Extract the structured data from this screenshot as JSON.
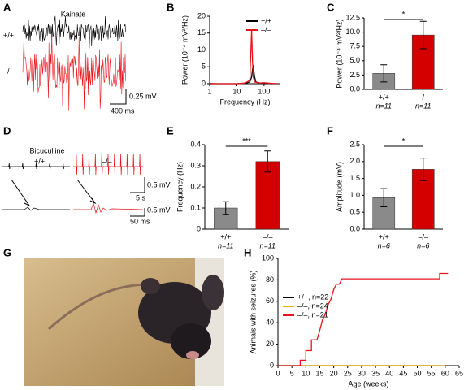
{
  "panel_labels": [
    "A",
    "B",
    "C",
    "D",
    "E",
    "F",
    "G",
    "H"
  ],
  "trace_panels": {
    "A": {
      "title": "Kainate",
      "genotypes": [
        "+/+",
        "–/–"
      ],
      "scale": [
        "0.25 mV",
        "400 ms"
      ]
    },
    "D": {
      "title": "Bicuculline",
      "genotypes": [
        "+/+",
        "–/–"
      ],
      "scale": [
        "0.5 mV",
        "5 s",
        "0.5 mV",
        "50 ms"
      ]
    }
  },
  "chart_data": [
    {
      "type": "line",
      "xlabel": "Frequency (Hz)",
      "ylabel": "Power (10⁻⁴ mV²/Hz)",
      "xscale": "log",
      "x": [
        1,
        2,
        5,
        10,
        20,
        30,
        35,
        38,
        40,
        45,
        50,
        70,
        100,
        200,
        300
      ],
      "xlim": [
        1,
        400
      ],
      "xticks": [
        1,
        10,
        100
      ],
      "ylim": [
        0,
        20
      ],
      "yticks": [
        0,
        5,
        10,
        15,
        20
      ],
      "legend": "upper right",
      "series": [
        {
          "name": "+/+",
          "color": "#000000",
          "values": [
            0,
            0,
            0,
            0,
            0.1,
            0.5,
            2,
            4.5,
            5,
            2,
            0.5,
            0.2,
            0.1,
            0,
            0
          ]
        },
        {
          "name": "–/–",
          "color": "#e8141c",
          "values": [
            0.1,
            0,
            0,
            0,
            0.2,
            1,
            16,
            6,
            2,
            0.5,
            0.4,
            0.2,
            0.3,
            0.1,
            0
          ]
        }
      ]
    },
    {
      "type": "bar",
      "ylabel": "Power (10⁻⁴ mV²/Hz)",
      "categories": [
        "+/+",
        "–/–"
      ],
      "n_labels": [
        "n=11",
        "n=11"
      ],
      "values": [
        2.8,
        9.5
      ],
      "errors": [
        1.5,
        2.4
      ],
      "colors": [
        "#8a8a8a",
        "#d40000"
      ],
      "significance": "*",
      "ylim": [
        0,
        12.5
      ],
      "yticks": [
        {
          "value": 0,
          "label": "0.0"
        },
        2.5,
        {
          "value": 5,
          "label": "5.0"
        },
        7.5,
        {
          "value": 10,
          "label": "10.0"
        },
        12.5
      ]
    },
    {
      "type": "bar",
      "ylabel": "Frequency (Hz)",
      "categories": [
        "+/+",
        "–/–"
      ],
      "n_labels": [
        "n=11",
        "n=11"
      ],
      "values": [
        0.1,
        0.32
      ],
      "errors": [
        0.03,
        0.05
      ],
      "colors": [
        "#8a8a8a",
        "#d40000"
      ],
      "significance": "***",
      "ylim": [
        0,
        0.4
      ],
      "yticks": [
        0,
        0.1,
        0.2,
        0.3,
        0.4
      ]
    },
    {
      "type": "bar",
      "ylabel": "Amplitude (mV)",
      "categories": [
        "+/+",
        "–/–"
      ],
      "n_labels": [
        "n=6",
        "n=6"
      ],
      "values": [
        0.93,
        1.77
      ],
      "errors": [
        0.27,
        0.33
      ],
      "colors": [
        "#8a8a8a",
        "#d40000"
      ],
      "significance": "*",
      "ylim": [
        0,
        2.5
      ],
      "yticks": [
        {
          "value": 0,
          "label": "0.0"
        },
        0.5,
        {
          "value": 1,
          "label": "1.0"
        },
        1.5,
        {
          "value": 2,
          "label": "2.0"
        },
        2.5
      ]
    },
    {
      "type": "line",
      "xlabel": "Age (weeks)",
      "ylabel": "Animals with seizures (%)",
      "xlim": [
        0,
        65
      ],
      "xticks": [
        0,
        5,
        10,
        15,
        20,
        25,
        30,
        35,
        40,
        45,
        50,
        55,
        60,
        65
      ],
      "ylim": [
        0,
        100
      ],
      "yticks": [
        0,
        20,
        40,
        60,
        80,
        100
      ],
      "legend": "center left",
      "series": [
        {
          "name": "+/+, n=22",
          "color": "#000000",
          "x": [
            0,
            60
          ],
          "values": [
            0,
            0
          ]
        },
        {
          "name": "–/–, n=24",
          "color": "#f0b000",
          "x": [
            0,
            60
          ],
          "values": [
            0,
            0
          ]
        },
        {
          "name": "–/–, n=21",
          "color": "#e8141c",
          "x": [
            0,
            8,
            8,
            10,
            10,
            12,
            12,
            14,
            15,
            16,
            17,
            18,
            19,
            20,
            21,
            22,
            23,
            24,
            58,
            58,
            61
          ],
          "values": [
            0,
            0,
            5,
            5,
            14,
            14,
            24,
            24,
            33,
            43,
            48,
            57,
            62,
            71,
            76,
            76,
            81,
            81,
            81,
            86,
            86
          ]
        }
      ]
    }
  ]
}
